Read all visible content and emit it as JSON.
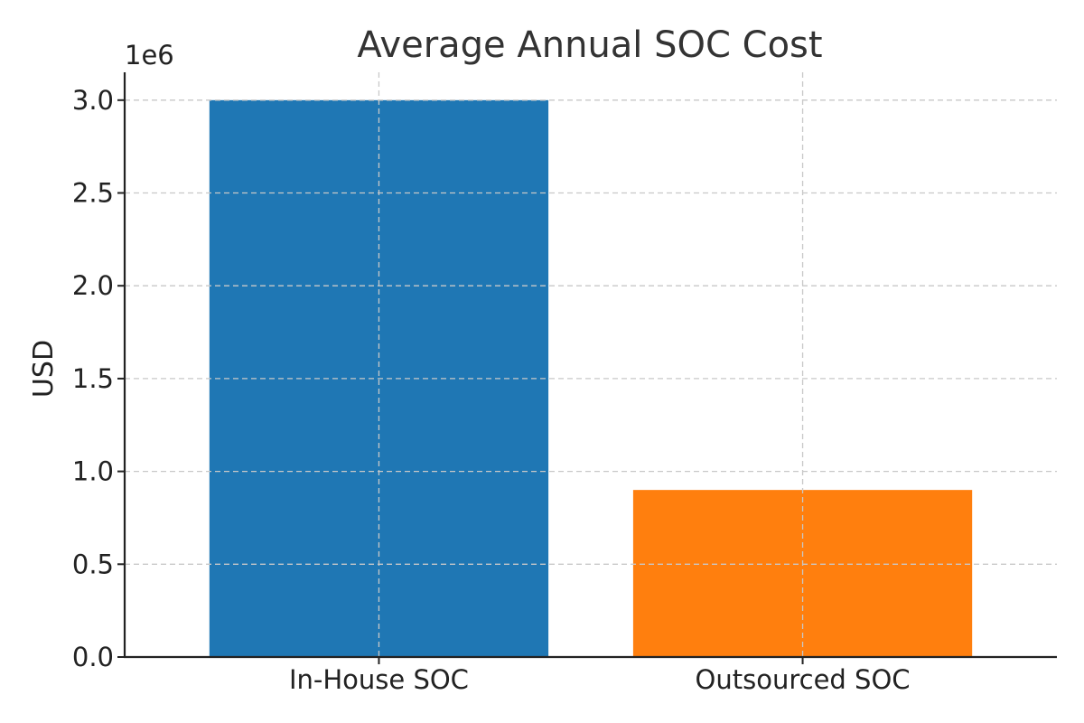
{
  "chart_data": {
    "type": "bar",
    "title": "Average Annual SOC Cost",
    "xlabel": "",
    "ylabel": "USD",
    "categories": [
      "In-House SOC",
      "Outsourced SOC"
    ],
    "values": [
      3000000,
      900000
    ],
    "colors": [
      "#1f77b4",
      "#ff7f0e"
    ],
    "ylim": [
      0,
      3150000
    ],
    "yticks": [
      0,
      500000,
      1000000,
      1500000,
      2000000,
      2500000,
      3000000
    ],
    "ytick_labels": [
      "0.0",
      "0.5",
      "1.0",
      "1.5",
      "2.0",
      "2.5",
      "3.0"
    ],
    "y_offset_label": "1e6",
    "grid": true,
    "legend": "none"
  }
}
